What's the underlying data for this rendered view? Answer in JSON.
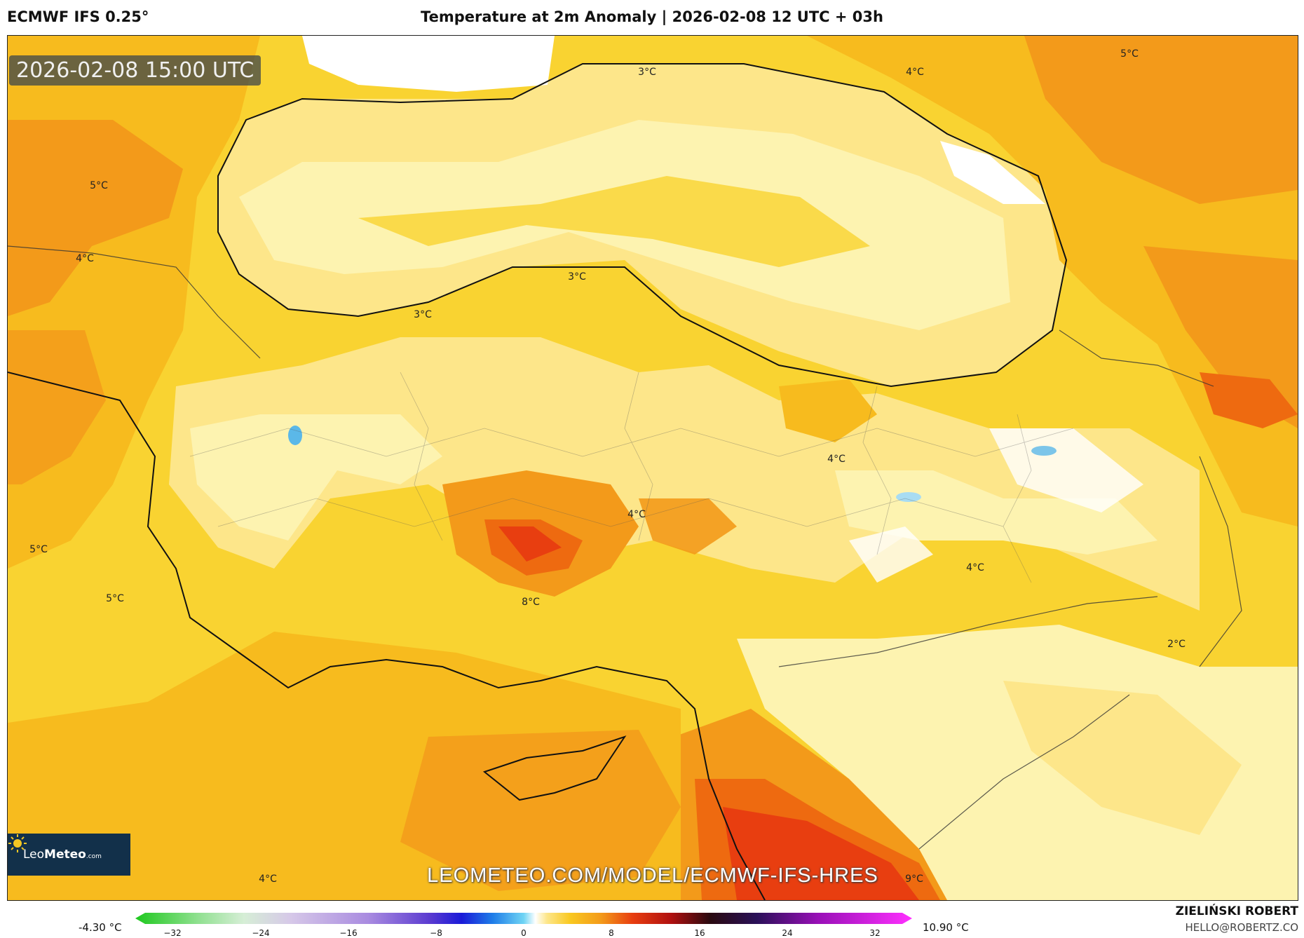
{
  "header": {
    "model": "ECMWF IFS 0.25°",
    "title": "Temperature at 2m Anomaly | 2026-02-08 12 UTC + 03h"
  },
  "map": {
    "valid_time": "2026-02-08 15:00 UTC",
    "watermark": "LEOMETEO.COM/MODEL/ECMWF-IFS-HRES",
    "temp_labels": [
      "3°C",
      "4°C",
      "5°C",
      "5°C",
      "4°C",
      "3°C",
      "3°C",
      "5°C",
      "5°C",
      "4°C",
      "8°C",
      "4°C",
      "4°C",
      "2°C",
      "4°C",
      "9°C"
    ],
    "colors": {
      "pale": "#fdf3b0",
      "light": "#fde68a",
      "yellow": "#f9d331",
      "amber": "#f7bb1e",
      "orange": "#f39a1a",
      "deep_orange": "#ee6a10",
      "red": "#e83e10",
      "white": "#ffffff",
      "blue": "#5bb8e8"
    }
  },
  "logo": {
    "name_light": "Leo",
    "name_bold": "Meteo",
    "suffix": ".com"
  },
  "colorbar": {
    "min_label": "-4.30 °C",
    "max_label": "10.90 °C",
    "ticks": [
      "−32",
      "−24",
      "−16",
      "−8",
      "0",
      "8",
      "16",
      "24",
      "32"
    ]
  },
  "credits": {
    "author": "ZIELIŃSKI ROBERT",
    "email": "HELLO@ROBERTZ.CO"
  }
}
